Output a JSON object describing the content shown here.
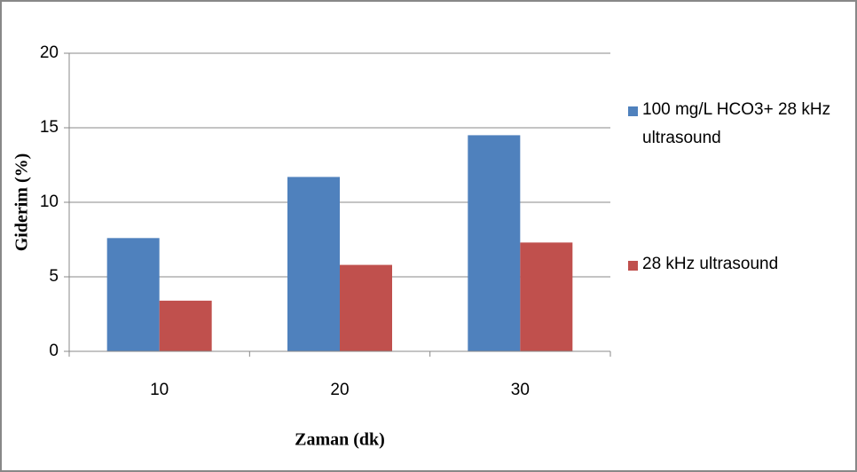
{
  "chart_data": {
    "type": "bar",
    "y_label": "Giderim  (%)",
    "x_label": "Zaman (dk)",
    "categories": [
      "10",
      "20",
      "30"
    ],
    "series": [
      {
        "name": "100 mg/L HCO3+ 28 kHz ultrasound",
        "color": "#4f81bd",
        "values": [
          7.6,
          11.7,
          14.5
        ]
      },
      {
        "name": "28 kHz ultrasound",
        "color": "#c0504d",
        "values": [
          3.4,
          5.8,
          7.3
        ]
      }
    ],
    "ylim": [
      0,
      20
    ],
    "yticks": [
      0,
      5,
      10,
      15,
      20
    ],
    "grid": true,
    "legend": "right"
  }
}
